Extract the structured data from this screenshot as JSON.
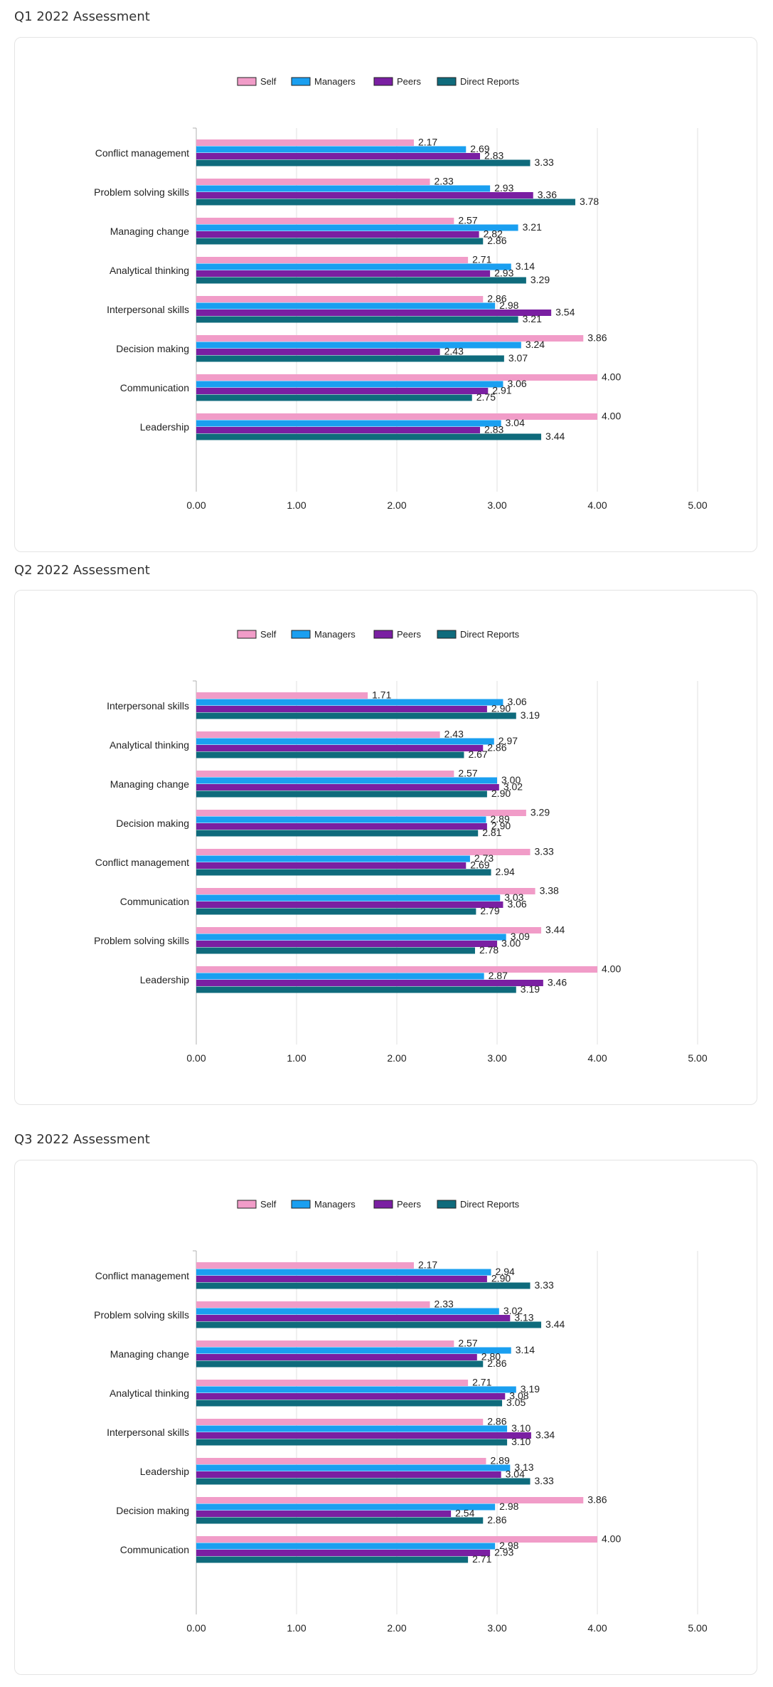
{
  "colors": {
    "self": "#f19cc8",
    "managers": "#1a9ff0",
    "peers": "#7a1fa2",
    "direct_reports": "#0f6b7c"
  },
  "chart_data": [
    {
      "type": "bar",
      "orientation": "horizontal",
      "title": "Q1 2022 Assessment",
      "legend_position": "top",
      "grid": true,
      "xlim": [
        0,
        5
      ],
      "ticks": [
        "0.00",
        "1.00",
        "2.00",
        "3.00",
        "4.00",
        "5.00"
      ],
      "categories": [
        "Conflict management",
        "Problem solving skills",
        "Managing change",
        "Analytical thinking",
        "Interpersonal skills",
        "Decision making",
        "Communication",
        "Leadership"
      ],
      "series": [
        {
          "name": "Self",
          "values": [
            2.17,
            2.33,
            2.57,
            2.71,
            2.86,
            3.86,
            4.0,
            4.0
          ]
        },
        {
          "name": "Managers",
          "values": [
            2.69,
            2.93,
            3.21,
            3.14,
            2.98,
            3.24,
            3.06,
            3.04
          ]
        },
        {
          "name": "Peers",
          "values": [
            2.83,
            3.36,
            2.82,
            2.93,
            3.54,
            2.43,
            2.91,
            2.83
          ]
        },
        {
          "name": "Direct Reports",
          "values": [
            3.33,
            3.78,
            2.86,
            3.29,
            3.21,
            3.07,
            2.75,
            3.44
          ]
        }
      ]
    },
    {
      "type": "bar",
      "orientation": "horizontal",
      "title": "Q2 2022 Assessment",
      "legend_position": "top",
      "grid": true,
      "xlim": [
        0,
        5
      ],
      "ticks": [
        "0.00",
        "1.00",
        "2.00",
        "3.00",
        "4.00",
        "5.00"
      ],
      "categories": [
        "Interpersonal skills",
        "Analytical thinking",
        "Managing change",
        "Decision making",
        "Conflict management",
        "Communication",
        "Problem solving skills",
        "Leadership"
      ],
      "series": [
        {
          "name": "Self",
          "values": [
            1.71,
            2.43,
            2.57,
            3.29,
            3.33,
            3.38,
            3.44,
            4.0
          ]
        },
        {
          "name": "Managers",
          "values": [
            3.06,
            2.97,
            3.0,
            2.89,
            2.73,
            3.03,
            3.09,
            2.87
          ]
        },
        {
          "name": "Peers",
          "values": [
            2.9,
            2.86,
            3.02,
            2.9,
            2.69,
            3.06,
            3.0,
            3.46
          ]
        },
        {
          "name": "Direct Reports",
          "values": [
            3.19,
            2.67,
            2.9,
            2.81,
            2.94,
            2.79,
            2.78,
            3.19
          ]
        }
      ]
    },
    {
      "type": "bar",
      "orientation": "horizontal",
      "title": "Q3 2022 Assessment",
      "legend_position": "top",
      "grid": true,
      "xlim": [
        0,
        5
      ],
      "ticks": [
        "0.00",
        "1.00",
        "2.00",
        "3.00",
        "4.00",
        "5.00"
      ],
      "categories": [
        "Conflict management",
        "Problem solving skills",
        "Managing change",
        "Analytical thinking",
        "Interpersonal skills",
        "Leadership",
        "Decision making",
        "Communication"
      ],
      "series": [
        {
          "name": "Self",
          "values": [
            2.17,
            2.33,
            2.57,
            2.71,
            2.86,
            2.89,
            3.86,
            4.0
          ]
        },
        {
          "name": "Managers",
          "values": [
            2.94,
            3.02,
            3.14,
            3.19,
            3.1,
            3.13,
            2.98,
            2.98
          ]
        },
        {
          "name": "Peers",
          "values": [
            2.9,
            3.13,
            2.8,
            3.08,
            3.34,
            3.04,
            2.54,
            2.93
          ]
        },
        {
          "name": "Direct Reports",
          "values": [
            3.33,
            3.44,
            2.86,
            3.05,
            3.1,
            3.33,
            2.86,
            2.71
          ]
        }
      ]
    }
  ]
}
